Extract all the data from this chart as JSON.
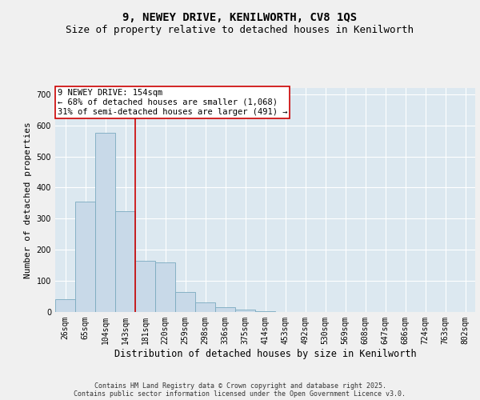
{
  "title": "9, NEWEY DRIVE, KENILWORTH, CV8 1QS",
  "subtitle": "Size of property relative to detached houses in Kenilworth",
  "xlabel": "Distribution of detached houses by size in Kenilworth",
  "ylabel": "Number of detached properties",
  "bins": [
    "26sqm",
    "65sqm",
    "104sqm",
    "143sqm",
    "181sqm",
    "220sqm",
    "259sqm",
    "298sqm",
    "336sqm",
    "375sqm",
    "414sqm",
    "453sqm",
    "492sqm",
    "530sqm",
    "569sqm",
    "608sqm",
    "647sqm",
    "686sqm",
    "724sqm",
    "763sqm",
    "802sqm"
  ],
  "values": [
    40,
    355,
    575,
    325,
    165,
    160,
    65,
    30,
    15,
    8,
    3,
    1,
    0,
    0,
    0,
    0,
    0,
    0,
    0,
    0,
    1
  ],
  "bar_color": "#c8d9e8",
  "bar_edge_color": "#7aaabf",
  "vline_x": 3.5,
  "vline_color": "#cc0000",
  "annotation_text": "9 NEWEY DRIVE: 154sqm\n← 68% of detached houses are smaller (1,068)\n31% of semi-detached houses are larger (491) →",
  "annotation_box_color": "#ffffff",
  "annotation_box_edge_color": "#cc0000",
  "ylim": [
    0,
    720
  ],
  "yticks": [
    0,
    100,
    200,
    300,
    400,
    500,
    600,
    700
  ],
  "background_color": "#dce8f0",
  "fig_background_color": "#f0f0f0",
  "grid_color": "#ffffff",
  "footer": "Contains HM Land Registry data © Crown copyright and database right 2025.\nContains public sector information licensed under the Open Government Licence v3.0.",
  "title_fontsize": 10,
  "subtitle_fontsize": 9,
  "xlabel_fontsize": 8.5,
  "ylabel_fontsize": 8,
  "tick_fontsize": 7,
  "annotation_fontsize": 7.5,
  "footer_fontsize": 6
}
